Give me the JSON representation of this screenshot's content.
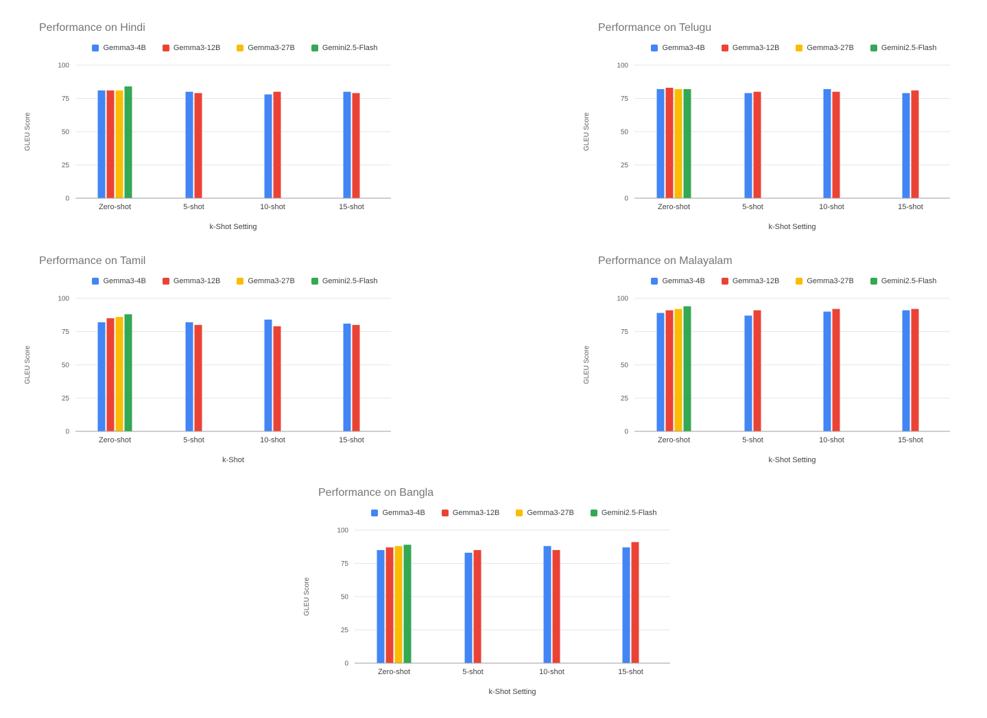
{
  "page": {
    "background": "#ffffff"
  },
  "palette": {
    "blue": "#4285F4",
    "red": "#EA4335",
    "yellow": "#FBBC04",
    "green": "#34A853",
    "title_text": "#757575",
    "axis_text": "#616161",
    "label_text": "#424242",
    "gridline": "#e6e6e6",
    "axis_line": "#9e9e9e"
  },
  "chart_data": [
    {
      "type": "bar",
      "title": "Performance on Hindi",
      "xlabel": "k-Shot Setting",
      "ylabel": "GLEU Score",
      "ylim": [
        0,
        100
      ],
      "yticks": [
        0,
        25,
        50,
        75,
        100
      ],
      "grid": true,
      "legend_position": "top",
      "categories": [
        "Zero-shot",
        "5-shot",
        "10-shot",
        "15-shot"
      ],
      "series": [
        {
          "name": "Gemma3-4B",
          "color": "#4285F4",
          "values": [
            81,
            80,
            78,
            80
          ]
        },
        {
          "name": "Gemma3-12B",
          "color": "#EA4335",
          "values": [
            81,
            79,
            80,
            79
          ]
        },
        {
          "name": "Gemma3-27B",
          "color": "#FBBC04",
          "values": [
            81,
            null,
            null,
            null
          ]
        },
        {
          "name": "Gemini2.5-Flash",
          "color": "#34A853",
          "values": [
            84,
            null,
            null,
            null
          ]
        }
      ]
    },
    {
      "type": "bar",
      "title": "Performance on Telugu",
      "xlabel": "k-Shot Setting",
      "ylabel": "GLEU Score",
      "ylim": [
        0,
        100
      ],
      "yticks": [
        0,
        25,
        50,
        75,
        100
      ],
      "grid": true,
      "legend_position": "top",
      "categories": [
        "Zero-shot",
        "5-shot",
        "10-shot",
        "15-shot"
      ],
      "series": [
        {
          "name": "Gemma3-4B",
          "color": "#4285F4",
          "values": [
            82,
            79,
            82,
            79
          ]
        },
        {
          "name": "Gemma3-12B",
          "color": "#EA4335",
          "values": [
            83,
            80,
            80,
            81
          ]
        },
        {
          "name": "Gemma3-27B",
          "color": "#FBBC04",
          "values": [
            82,
            null,
            null,
            null
          ]
        },
        {
          "name": "Gemini2.5-Flash",
          "color": "#34A853",
          "values": [
            82,
            null,
            null,
            null
          ]
        }
      ]
    },
    {
      "type": "bar",
      "title": "Performance on Tamil",
      "xlabel": "k-Shot",
      "ylabel": "GLEU Score",
      "ylim": [
        0,
        100
      ],
      "yticks": [
        0,
        25,
        50,
        75,
        100
      ],
      "grid": true,
      "legend_position": "top",
      "categories": [
        "Zero-shot",
        "5-shot",
        "10-shot",
        "15-shot"
      ],
      "series": [
        {
          "name": "Gemma3-4B",
          "color": "#4285F4",
          "values": [
            82,
            82,
            84,
            81
          ]
        },
        {
          "name": "Gemma3-12B",
          "color": "#EA4335",
          "values": [
            85,
            80,
            79,
            80
          ]
        },
        {
          "name": "Gemma3-27B",
          "color": "#FBBC04",
          "values": [
            86,
            null,
            null,
            null
          ]
        },
        {
          "name": "Gemini2.5-Flash",
          "color": "#34A853",
          "values": [
            88,
            null,
            null,
            null
          ]
        }
      ]
    },
    {
      "type": "bar",
      "title": "Performance on Malayalam",
      "xlabel": "k-Shot Setting",
      "ylabel": "GLEU Score",
      "ylim": [
        0,
        100
      ],
      "yticks": [
        0,
        25,
        50,
        75,
        100
      ],
      "grid": true,
      "legend_position": "top",
      "categories": [
        "Zero-shot",
        "5-shot",
        "10-shot",
        "15-shot"
      ],
      "series": [
        {
          "name": "Gemma3-4B",
          "color": "#4285F4",
          "values": [
            89,
            87,
            90,
            91
          ]
        },
        {
          "name": "Gemma3-12B",
          "color": "#EA4335",
          "values": [
            91,
            91,
            92,
            92
          ]
        },
        {
          "name": "Gemma3-27B",
          "color": "#FBBC04",
          "values": [
            92,
            null,
            null,
            null
          ]
        },
        {
          "name": "Gemini2.5-Flash",
          "color": "#34A853",
          "values": [
            94,
            null,
            null,
            null
          ]
        }
      ]
    },
    {
      "type": "bar",
      "title": "Performance on Bangla",
      "xlabel": "k-Shot Setting",
      "ylabel": "GLEU Score",
      "ylim": [
        0,
        100
      ],
      "yticks": [
        0,
        25,
        50,
        75,
        100
      ],
      "grid": true,
      "legend_position": "top",
      "categories": [
        "Zero-shot",
        "5-shot",
        "10-shot",
        "15-shot"
      ],
      "series": [
        {
          "name": "Gemma3-4B",
          "color": "#4285F4",
          "values": [
            85,
            83,
            88,
            87
          ]
        },
        {
          "name": "Gemma3-12B",
          "color": "#EA4335",
          "values": [
            87,
            85,
            85,
            91
          ]
        },
        {
          "name": "Gemma3-27B",
          "color": "#FBBC04",
          "values": [
            88,
            null,
            null,
            null
          ]
        },
        {
          "name": "Gemini2.5-Flash",
          "color": "#34A853",
          "values": [
            89,
            null,
            null,
            null
          ]
        }
      ]
    }
  ]
}
